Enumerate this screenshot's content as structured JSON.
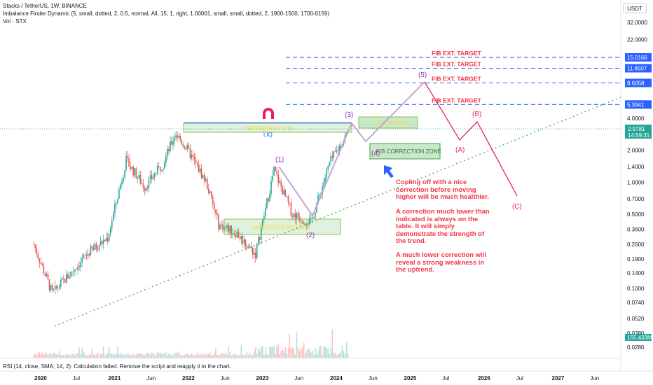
{
  "header": {
    "line1": "Stacks / TetherUS, 1W, BINANCE",
    "line2": "Imbalance Finder Dynamic (5, small, dotted, 2, 0.5, normal, All, 15, 1, right, 1.00001, small, small, dotted, 2, 1900-1500, 1700-0159)",
    "line3": "Vol · STX",
    "currency_button": "USDT"
  },
  "rsi_status": "RSI (14, close, SMA, 14, 2): Calculation failed. Remove the script and reapply it to the chart.",
  "annotations": {
    "cooling": "Cooling off with a nice correction before moving higher will be much healthier.",
    "lower": "A correction much lower than indicated is always on the table. It will simply demonstrate the strength of the trend.",
    "weakness": "A much lower correction will reveal a strong weakness in the uptrend."
  },
  "chart_data": {
    "type": "candlestick",
    "symbol": "STX/USDT",
    "timeframe": "1W",
    "exchange": "BINANCE",
    "y_scale": "log",
    "ylim": [
      0.026,
      36
    ],
    "x_ticks": [
      "2020",
      "Jul",
      "2021",
      "Jun",
      "2022",
      "Jun",
      "2023",
      "Jun",
      "2024",
      "Jun",
      "2025",
      "Jul",
      "2026",
      "Jul",
      "2027",
      "Jun"
    ],
    "x_tick_bold": [
      true,
      false,
      true,
      false,
      true,
      false,
      true,
      false,
      true,
      false,
      true,
      false,
      true,
      false,
      true,
      false
    ],
    "y_ticks": [
      "32.0000",
      "22.0000",
      "4.0000",
      "2.0000",
      "1.4000",
      "1.0000",
      "0.7000",
      "0.5000",
      "0.3600",
      "0.2600",
      "0.1900",
      "0.1400",
      "0.1000",
      "0.0740",
      "0.0520",
      "0.0380",
      "0.0280"
    ],
    "y_tick_values": [
      32,
      22,
      4,
      2,
      1.4,
      1,
      0.7,
      0.5,
      0.36,
      0.26,
      0.19,
      0.14,
      0.1,
      0.074,
      0.052,
      0.038,
      0.028
    ],
    "price_path": [
      {
        "date": "2019-12",
        "price": 0.26
      },
      {
        "date": "2020-03",
        "price": 0.09
      },
      {
        "date": "2020-06",
        "price": 0.14
      },
      {
        "date": "2020-09",
        "price": 0.22
      },
      {
        "date": "2020-12",
        "price": 0.3
      },
      {
        "date": "2021-03",
        "price": 1.6
      },
      {
        "date": "2021-06",
        "price": 0.9
      },
      {
        "date": "2021-09",
        "price": 1.5
      },
      {
        "date": "2021-11",
        "price": 2.9
      },
      {
        "date": "2022-01",
        "price": 2.0
      },
      {
        "date": "2022-04",
        "price": 1.0
      },
      {
        "date": "2022-06",
        "price": 0.4
      },
      {
        "date": "2022-09",
        "price": 0.33
      },
      {
        "date": "2022-12",
        "price": 0.21
      },
      {
        "date": "2023-03",
        "price": 1.3
      },
      {
        "date": "2023-06",
        "price": 0.5
      },
      {
        "date": "2023-09",
        "price": 0.42
      },
      {
        "date": "2023-12",
        "price": 1.5
      },
      {
        "date": "2024-03",
        "price": 2.98
      }
    ],
    "current_price": {
      "value": "2.9781",
      "countdown": "14:59:31"
    },
    "volume_label": "155.433M",
    "fib_targets": [
      {
        "label": "FIB EXT. TARGET",
        "value": "15.0166"
      },
      {
        "label": "FIB EXT. TARGET",
        "value": "11.8507"
      },
      {
        "label": "FIB EXT. TARGET",
        "value": "8.6058"
      },
      {
        "label": "FIB EXT. TARGET",
        "value": "5.3941"
      }
    ],
    "zones": {
      "order_block": "ORDER BLOCK S",
      "liq": "LIQ",
      "mitigation_block": "MITIGATION BLOCK B",
      "fib_correction": "FIB CORRECTION ZONE",
      "reached": "2.618 reached"
    },
    "wave_labels": {
      "w1": "(1)",
      "w2": "(2)",
      "w3": "(3)",
      "w4": "(4)",
      "w5": "(5)",
      "wa": "(A)",
      "wb": "(B)",
      "wc": "(C)"
    },
    "projection": [
      {
        "label": "(3)",
        "date": "2024-03",
        "price": 3.2
      },
      {
        "label": "(4)",
        "date": "2024-05",
        "price": 2.2
      },
      {
        "label": "(5)",
        "date": "2024-12",
        "price": 8.6
      },
      {
        "label": "(A)",
        "date": "2025-06",
        "price": 2.5
      },
      {
        "label": "(B)",
        "date": "2025-09",
        "price": 3.6
      },
      {
        "label": "(C)",
        "date": "2026-02",
        "price": 0.75
      }
    ],
    "trendline": {
      "start": {
        "date": "2020-03",
        "price": 0.045
      },
      "end": {
        "date": "2027-08",
        "price": 6.0
      }
    },
    "colors": {
      "up": "#26a69a",
      "down": "#ef5350",
      "annotation": "#f23645",
      "fib_line": "#2962ff",
      "trendline": "#4caf50",
      "wave": "#9c27b0",
      "correction": "#e91e63"
    }
  }
}
